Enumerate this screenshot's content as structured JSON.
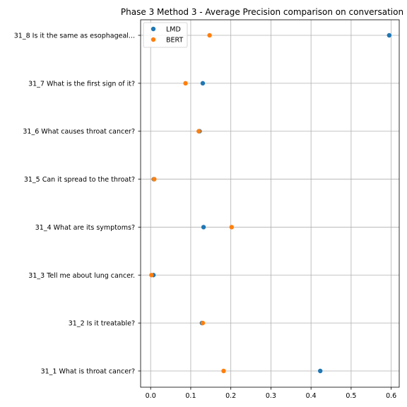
{
  "chart_data": {
    "type": "scatter",
    "title": "Phase 3 Method 3 - Average Precision comparison on conversation",
    "xlabel": "",
    "ylabel": "",
    "orientation": "horizontal",
    "categories": [
      "31_1 What is throat cancer?",
      "31_2 Is it treatable?",
      "31_3 Tell me about lung cancer.",
      "31_4 What are its symptoms?",
      "31_5 Can it spread to the throat?",
      "31_6 What causes throat cancer?",
      "31_7 What is the first sign of it?",
      "31_8 Is it the same as esophageal..."
    ],
    "series": [
      {
        "name": "LMD",
        "color": "#1f77b4",
        "values": [
          0.423,
          0.128,
          0.007,
          0.132,
          0.008,
          0.122,
          0.13,
          0.595
        ]
      },
      {
        "name": "BERT",
        "color": "#ff7f0e",
        "values": [
          0.182,
          0.13,
          0.002,
          0.202,
          0.009,
          0.12,
          0.087,
          0.147
        ]
      }
    ],
    "xlim": [
      -0.025,
      0.62
    ],
    "xticks": [
      0.0,
      0.1,
      0.2,
      0.3,
      0.4,
      0.5,
      0.6
    ],
    "xtick_labels": [
      "0.0",
      "0.1",
      "0.2",
      "0.3",
      "0.4",
      "0.5",
      "0.6"
    ],
    "grid": true,
    "legend_position": "upper left"
  }
}
